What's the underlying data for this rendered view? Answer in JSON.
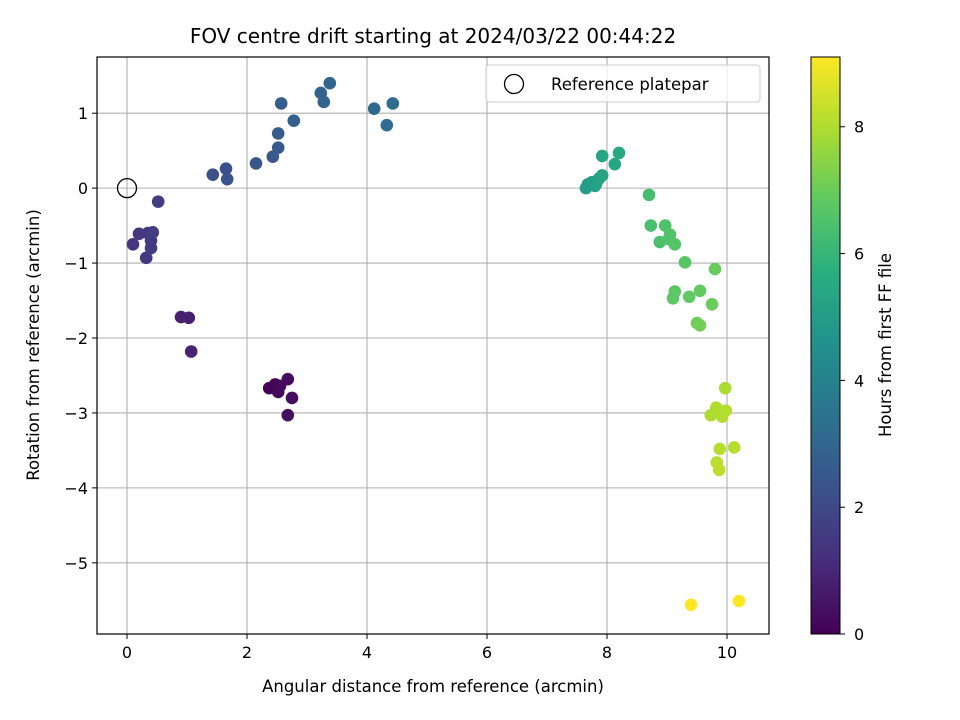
{
  "chart_data": {
    "type": "scatter",
    "title": "FOV centre drift starting at 2024/03/22 00:44:22",
    "xlabel": "Angular distance from reference (arcmin)",
    "ylabel": "Rotation from reference (arcmin)",
    "xlim": [
      -0.5,
      10.7
    ],
    "ylim": [
      -5.95,
      1.75
    ],
    "xticks": [
      0,
      2,
      4,
      6,
      8,
      10
    ],
    "xtick_labels": [
      "0",
      "2",
      "4",
      "6",
      "8",
      "10"
    ],
    "yticks": [
      -5,
      -4,
      -3,
      -2,
      -1,
      0,
      1
    ],
    "ytick_labels": [
      "−5",
      "−4",
      "−3",
      "−2",
      "−1",
      "0",
      "1"
    ],
    "grid": true,
    "legend": {
      "placement": "upper right",
      "entries": [
        {
          "label": "Reference platepar",
          "marker": "open circle"
        }
      ]
    },
    "reference_point": {
      "x": 0,
      "y": 0
    },
    "colorbar": {
      "label": "Hours from first FF file",
      "range": [
        0,
        9.1
      ],
      "ticks": [
        0,
        2,
        4,
        6,
        8
      ],
      "tick_labels": [
        "0",
        "2",
        "4",
        "6",
        "8"
      ],
      "colormap": "viridis"
    },
    "series": [
      {
        "color_by": "hours",
        "points": [
          {
            "x": 2.37,
            "y": -2.67,
            "h": 0.05
          },
          {
            "x": 2.47,
            "y": -2.62,
            "h": 0.1
          },
          {
            "x": 2.52,
            "y": -2.72,
            "h": 0.15
          },
          {
            "x": 2.55,
            "y": -2.64,
            "h": 0.2
          },
          {
            "x": 2.68,
            "y": -2.55,
            "h": 0.25
          },
          {
            "x": 2.75,
            "y": -2.8,
            "h": 0.3
          },
          {
            "x": 2.68,
            "y": -3.03,
            "h": 0.35
          },
          {
            "x": 0.9,
            "y": -1.72,
            "h": 0.8
          },
          {
            "x": 1.03,
            "y": -1.73,
            "h": 0.85
          },
          {
            "x": 1.07,
            "y": -2.18,
            "h": 0.9
          },
          {
            "x": 0.1,
            "y": -0.75,
            "h": 1.4
          },
          {
            "x": 0.2,
            "y": -0.61,
            "h": 1.45
          },
          {
            "x": 0.32,
            "y": -0.93,
            "h": 1.5
          },
          {
            "x": 0.35,
            "y": -0.6,
            "h": 1.5
          },
          {
            "x": 0.4,
            "y": -0.7,
            "h": 1.55
          },
          {
            "x": 0.4,
            "y": -0.8,
            "h": 1.55
          },
          {
            "x": 0.43,
            "y": -0.59,
            "h": 1.6
          },
          {
            "x": 0.52,
            "y": -0.18,
            "h": 1.65
          },
          {
            "x": 1.43,
            "y": 0.18,
            "h": 2.2
          },
          {
            "x": 1.65,
            "y": 0.26,
            "h": 2.25
          },
          {
            "x": 1.67,
            "y": 0.12,
            "h": 2.3
          },
          {
            "x": 2.15,
            "y": 0.33,
            "h": 2.4
          },
          {
            "x": 2.43,
            "y": 0.42,
            "h": 2.5
          },
          {
            "x": 2.52,
            "y": 0.54,
            "h": 2.55
          },
          {
            "x": 2.52,
            "y": 0.73,
            "h": 2.6
          },
          {
            "x": 2.57,
            "y": 1.13,
            "h": 2.7
          },
          {
            "x": 2.78,
            "y": 0.9,
            "h": 2.75
          },
          {
            "x": 3.23,
            "y": 1.27,
            "h": 2.85
          },
          {
            "x": 3.28,
            "y": 1.15,
            "h": 2.9
          },
          {
            "x": 3.38,
            "y": 1.4,
            "h": 2.95
          },
          {
            "x": 4.12,
            "y": 1.06,
            "h": 3.1
          },
          {
            "x": 4.33,
            "y": 0.84,
            "h": 3.2
          },
          {
            "x": 4.43,
            "y": 1.13,
            "h": 3.25
          },
          {
            "x": 7.65,
            "y": 0.0,
            "h": 5.0
          },
          {
            "x": 7.68,
            "y": 0.05,
            "h": 5.05
          },
          {
            "x": 7.75,
            "y": 0.08,
            "h": 5.1
          },
          {
            "x": 7.8,
            "y": 0.03,
            "h": 5.15
          },
          {
            "x": 7.82,
            "y": 0.06,
            "h": 5.2
          },
          {
            "x": 7.87,
            "y": 0.13,
            "h": 5.25
          },
          {
            "x": 7.92,
            "y": 0.17,
            "h": 5.3
          },
          {
            "x": 7.92,
            "y": 0.43,
            "h": 5.35
          },
          {
            "x": 8.13,
            "y": 0.32,
            "h": 5.4
          },
          {
            "x": 8.2,
            "y": 0.47,
            "h": 5.45
          },
          {
            "x": 8.7,
            "y": -0.09,
            "h": 6.3
          },
          {
            "x": 8.73,
            "y": -0.5,
            "h": 6.4
          },
          {
            "x": 8.88,
            "y": -0.72,
            "h": 6.45
          },
          {
            "x": 8.97,
            "y": -0.5,
            "h": 6.5
          },
          {
            "x": 9.05,
            "y": -0.62,
            "h": 6.55
          },
          {
            "x": 9.03,
            "y": -0.68,
            "h": 6.55
          },
          {
            "x": 9.13,
            "y": -0.75,
            "h": 6.6
          },
          {
            "x": 9.3,
            "y": -0.99,
            "h": 6.7
          },
          {
            "x": 9.13,
            "y": -1.38,
            "h": 6.75
          },
          {
            "x": 9.1,
            "y": -1.47,
            "h": 6.8
          },
          {
            "x": 9.37,
            "y": -1.45,
            "h": 6.85
          },
          {
            "x": 9.55,
            "y": -1.37,
            "h": 6.9
          },
          {
            "x": 9.8,
            "y": -1.08,
            "h": 6.95
          },
          {
            "x": 9.75,
            "y": -1.55,
            "h": 7.0
          },
          {
            "x": 9.5,
            "y": -1.8,
            "h": 7.05
          },
          {
            "x": 9.55,
            "y": -1.83,
            "h": 7.1
          },
          {
            "x": 9.97,
            "y": -2.67,
            "h": 7.9
          },
          {
            "x": 9.73,
            "y": -3.03,
            "h": 7.95
          },
          {
            "x": 9.82,
            "y": -2.93,
            "h": 8.0
          },
          {
            "x": 9.9,
            "y": -3.0,
            "h": 8.0
          },
          {
            "x": 9.92,
            "y": -3.05,
            "h": 8.05
          },
          {
            "x": 9.98,
            "y": -2.97,
            "h": 8.05
          },
          {
            "x": 9.88,
            "y": -3.48,
            "h": 8.1
          },
          {
            "x": 10.12,
            "y": -3.46,
            "h": 8.1
          },
          {
            "x": 9.83,
            "y": -3.66,
            "h": 8.15
          },
          {
            "x": 9.87,
            "y": -3.76,
            "h": 8.2
          },
          {
            "x": 9.4,
            "y": -5.56,
            "h": 9.1
          },
          {
            "x": 10.2,
            "y": -5.51,
            "h": 9.1
          }
        ]
      }
    ]
  }
}
